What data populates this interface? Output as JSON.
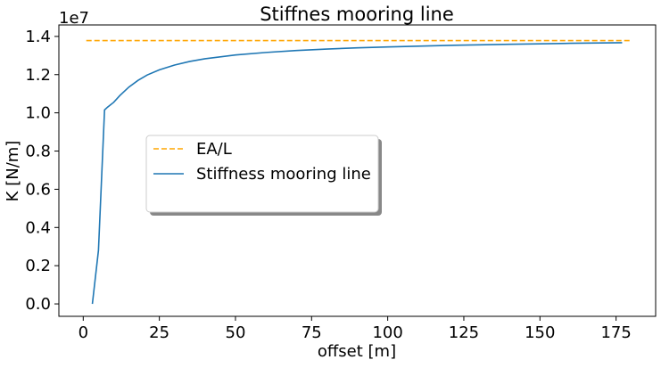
{
  "chart_data": {
    "type": "line",
    "title": "Stiffnes mooring line",
    "xlabel": "offset [m]",
    "ylabel": "K [N/m]",
    "y_scale_label": "1e7",
    "y_multiplier": 10000000,
    "xlim": [
      -8,
      188
    ],
    "ylim": [
      -650000,
      14600000
    ],
    "x_ticks": [
      0,
      25,
      50,
      75,
      100,
      125,
      150,
      175
    ],
    "x_tick_labels": [
      "0",
      "25",
      "50",
      "75",
      "100",
      "125",
      "150",
      "175"
    ],
    "y_ticks": [
      0,
      2000000,
      4000000,
      6000000,
      8000000,
      10000000,
      12000000,
      14000000
    ],
    "y_tick_labels": [
      "0.0",
      "0.2",
      "0.4",
      "0.6",
      "0.8",
      "1.0",
      "1.2",
      "1.4"
    ],
    "grid": false,
    "legend_position": "center-left",
    "series": [
      {
        "name": "EA/L",
        "color": "#ffa500",
        "dash": "dashed",
        "points": [
          [
            1,
            13780000
          ],
          [
            180,
            13780000
          ]
        ]
      },
      {
        "name": "Stiffness mooring line",
        "color": "#1f77b4",
        "dash": "solid",
        "points": [
          [
            3,
            0
          ],
          [
            5,
            2800000
          ],
          [
            7,
            10150000
          ],
          [
            8,
            10300000
          ],
          [
            10,
            10550000
          ],
          [
            12,
            10900000
          ],
          [
            15,
            11350000
          ],
          [
            18,
            11700000
          ],
          [
            21,
            11980000
          ],
          [
            25,
            12250000
          ],
          [
            30,
            12500000
          ],
          [
            35,
            12690000
          ],
          [
            40,
            12830000
          ],
          [
            50,
            13030000
          ],
          [
            60,
            13160000
          ],
          [
            70,
            13260000
          ],
          [
            80,
            13340000
          ],
          [
            90,
            13400000
          ],
          [
            100,
            13450000
          ],
          [
            110,
            13490000
          ],
          [
            120,
            13530000
          ],
          [
            130,
            13560000
          ],
          [
            140,
            13590000
          ],
          [
            150,
            13610000
          ],
          [
            160,
            13640000
          ],
          [
            170,
            13660000
          ],
          [
            177,
            13670000
          ]
        ]
      }
    ]
  }
}
